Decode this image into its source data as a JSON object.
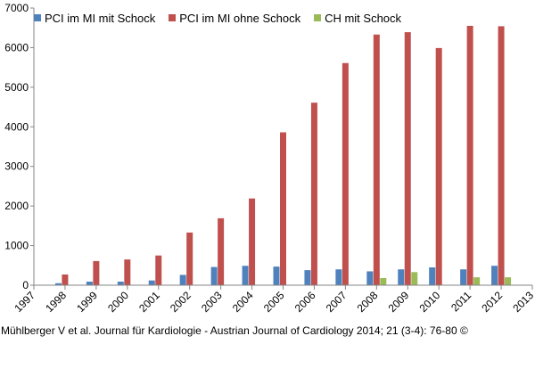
{
  "chart_data": {
    "type": "bar",
    "categories": [
      "1998",
      "1999",
      "2000",
      "2001",
      "2002",
      "2003",
      "2004",
      "2005",
      "2006",
      "2007",
      "2008",
      "2009",
      "2010",
      "2011",
      "2012"
    ],
    "x_tick_labels": [
      "1997",
      "1998",
      "1999",
      "2000",
      "2001",
      "2002",
      "2003",
      "2004",
      "2005",
      "2006",
      "2007",
      "2008",
      "2009",
      "2010",
      "2011",
      "2012",
      "2013"
    ],
    "y_tick_labels": [
      "0",
      "1000",
      "2000",
      "3000",
      "4000",
      "5000",
      "6000",
      "7000"
    ],
    "ylim": [
      0,
      7000
    ],
    "grid": false,
    "legend_position": "top-left",
    "series": [
      {
        "name": "PCI im MI mit Schock",
        "color": "#4f81bd",
        "values": [
          50,
          90,
          90,
          120,
          260,
          460,
          490,
          470,
          380,
          400,
          350,
          400,
          450,
          400,
          490
        ]
      },
      {
        "name": "PCI im MI ohne Schock",
        "color": "#c0504d",
        "values": [
          270,
          610,
          650,
          750,
          1330,
          1690,
          2190,
          3860,
          4610,
          5610,
          6330,
          6390,
          5990,
          6550,
          6540
        ]
      },
      {
        "name": "CH mit Schock",
        "color": "#9bbb59",
        "values": [
          null,
          null,
          null,
          null,
          null,
          null,
          null,
          null,
          null,
          null,
          180,
          330,
          null,
          200,
          200
        ]
      }
    ]
  },
  "citation": "Mühlberger V et al. Journal für Kardiologie - Austrian Journal of Cardiology 2014; 21 (3-4): 76-80 ©"
}
